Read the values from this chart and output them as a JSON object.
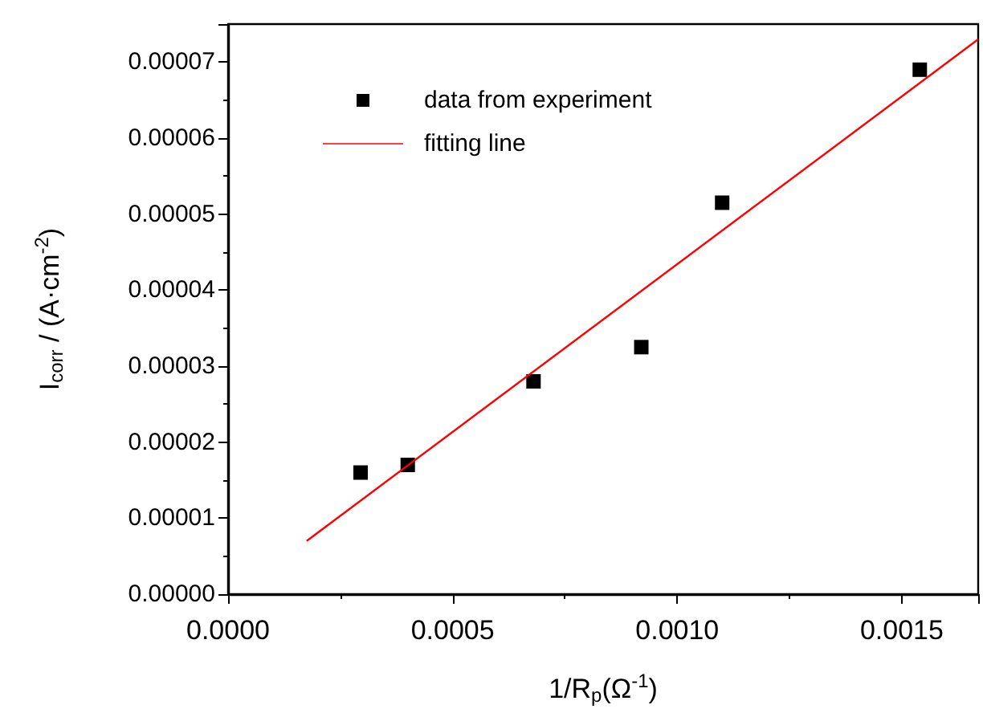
{
  "chart_data": {
    "type": "scatter",
    "xlabel": "1/R$_{p}$(Ω$^{-1}$)",
    "ylabel": "I$_{corr}$ / (A·cm$^{-2}$)",
    "series": [
      {
        "name": "data from experiment",
        "color": "#000000",
        "marker": "square",
        "x": [
          0.000295,
          0.0004,
          0.00068,
          0.00092,
          0.0011,
          0.00154
        ],
        "values": [
          1.6e-05,
          1.7e-05,
          2.8e-05,
          3.25e-05,
          5.15e-05,
          6.9e-05
        ]
      },
      {
        "name": "fitting line",
        "type": "line",
        "color": "#ff0000",
        "marker": "none",
        "line_style": "solid",
        "x": [
          0.000175,
          0.00167
        ],
        "values": [
          7e-06,
          7.3e-05
        ]
      }
    ],
    "xlim": [
      0,
      0.00167
    ],
    "xticks": [
      {
        "value": 0,
        "label": "0.0000"
      },
      {
        "value": 0.0005,
        "label": "0.0005"
      },
      {
        "value": 0.001,
        "label": "0.0010"
      },
      {
        "value": 0.0015,
        "label": "0.0015"
      }
    ],
    "ylim": [
      0,
      7.5e-05
    ],
    "yticks": [
      {
        "value": 0,
        "label": "0.00000"
      },
      {
        "value": 1e-05,
        "label": "0.00001"
      },
      {
        "value": 2e-05,
        "label": "0.00002"
      },
      {
        "value": 3e-05,
        "label": "0.00003"
      },
      {
        "value": 4e-05,
        "label": "0.00004"
      },
      {
        "value": 5e-05,
        "label": "0.00005"
      },
      {
        "value": 6e-05,
        "label": "0.00006"
      },
      {
        "value": 7e-05,
        "label": "0.00007"
      }
    ],
    "grid": false,
    "legend": "top left"
  }
}
